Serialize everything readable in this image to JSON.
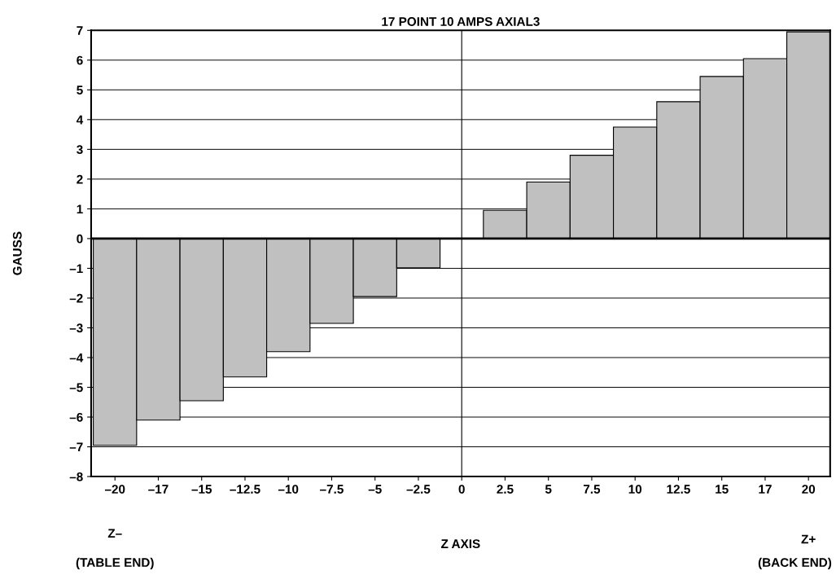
{
  "chart_data": {
    "type": "bar",
    "title": "17 POINT 10 AMPS AXIAL3",
    "xlabel": "Z AXIS",
    "ylabel": "GAUSS",
    "categories": [
      "–20",
      "–17",
      "–15",
      "–12.5",
      "–10",
      "–7.5",
      "–5",
      "–2.5",
      "0",
      "2.5",
      "5",
      "7.5",
      "10",
      "12.5",
      "15",
      "17",
      "20"
    ],
    "values": [
      -6.95,
      -6.1,
      -5.45,
      -4.65,
      -3.8,
      -2.85,
      -1.95,
      -0.98,
      0,
      0.95,
      1.9,
      2.8,
      3.75,
      4.6,
      5.45,
      6.05,
      6.95
    ],
    "color": "#c0c0c0",
    "ylim": [
      -8,
      7
    ],
    "yticks": [
      {
        "value": -8,
        "label": "–8"
      },
      {
        "value": -7,
        "label": "–7"
      },
      {
        "value": -6,
        "label": "–6"
      },
      {
        "value": -5,
        "label": "–5"
      },
      {
        "value": -4,
        "label": "–4"
      },
      {
        "value": -3,
        "label": "–3"
      },
      {
        "value": -2,
        "label": "–2"
      },
      {
        "value": -1,
        "label": "–1"
      },
      0,
      1,
      2,
      3,
      4,
      5,
      6,
      7
    ],
    "grid": "y",
    "ref_lines": [
      {
        "axis": "y",
        "value": 0
      },
      {
        "axis": "x",
        "value": "0"
      }
    ],
    "annotations": [
      "Z–",
      "(TABLE END)",
      "Z+",
      "(BACK END)"
    ]
  }
}
